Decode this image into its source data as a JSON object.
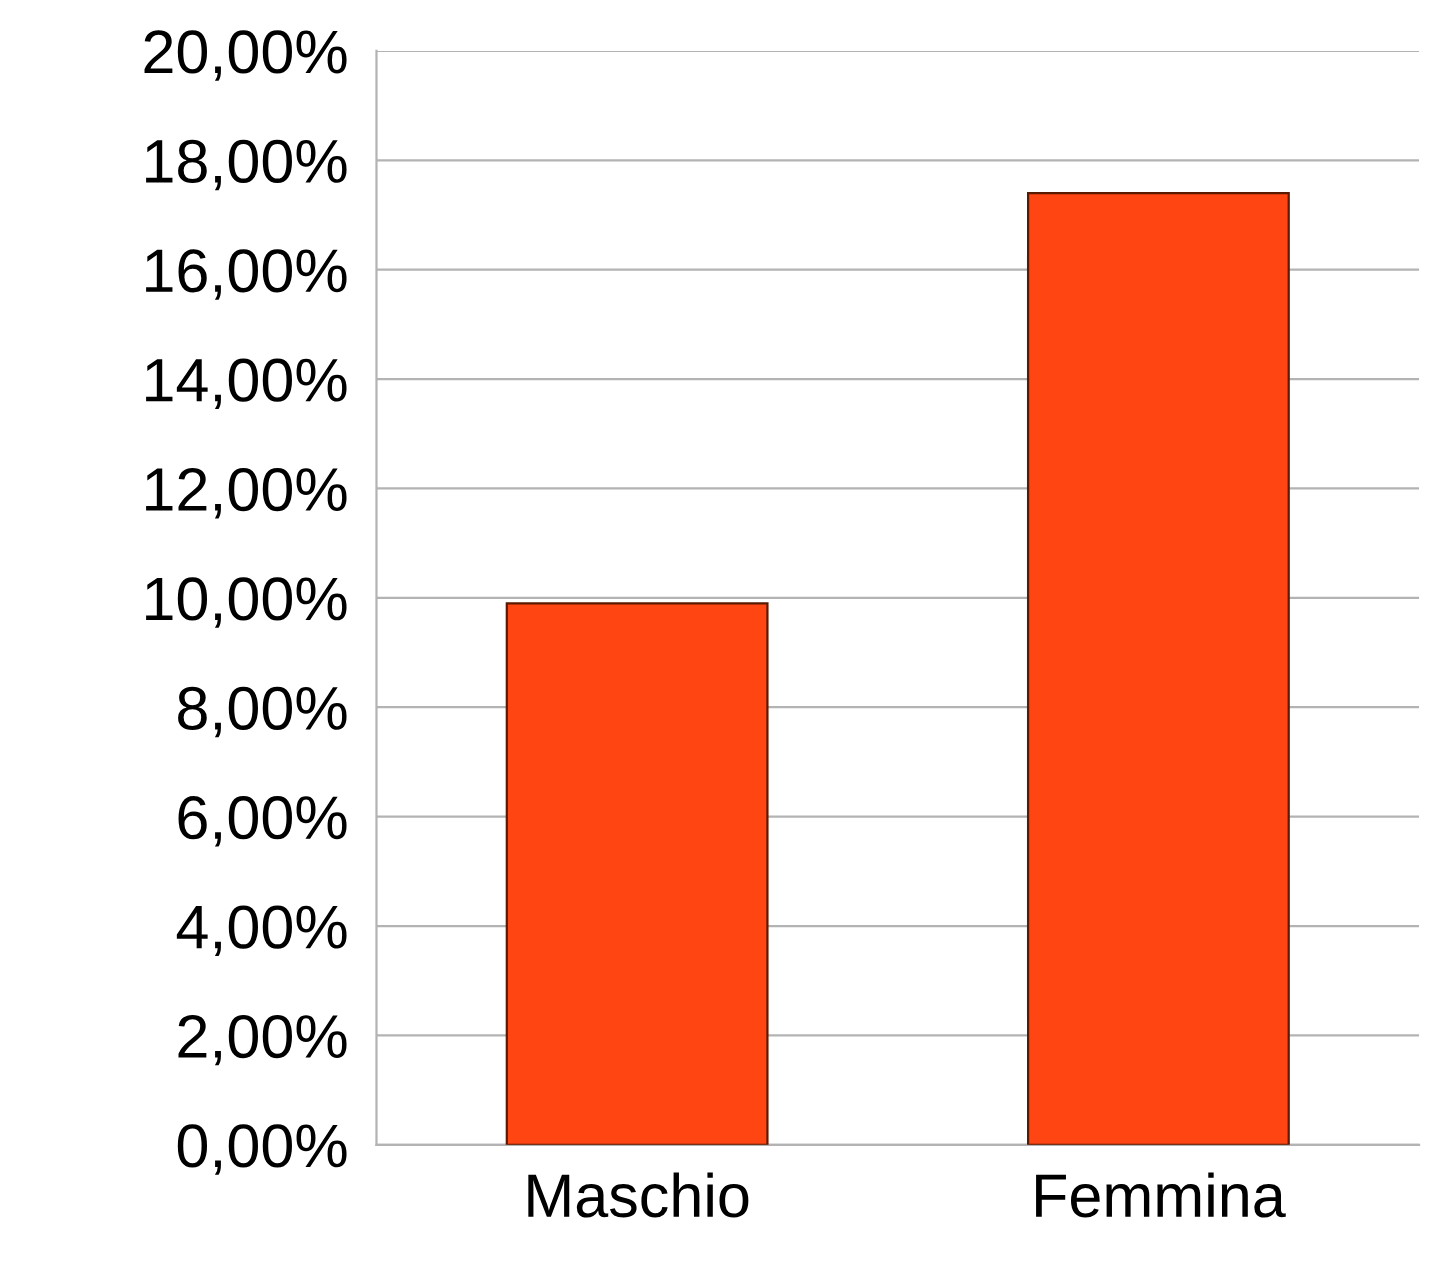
{
  "chart_data": {
    "type": "bar",
    "categories": [
      "Maschio",
      "Femmina"
    ],
    "values": [
      9.9,
      17.4
    ],
    "color": "#ff4512",
    "ylim": [
      0,
      20
    ],
    "yticks": [
      {
        "value": 0,
        "label": "0,00%"
      },
      {
        "value": 2,
        "label": "2,00%"
      },
      {
        "value": 4,
        "label": "4,00%"
      },
      {
        "value": 6,
        "label": "6,00%"
      },
      {
        "value": 8,
        "label": "8,00%"
      },
      {
        "value": 10,
        "label": "10,00%"
      },
      {
        "value": 12,
        "label": "12,00%"
      },
      {
        "value": 14,
        "label": "14,00%"
      },
      {
        "value": 16,
        "label": "16,00%"
      },
      {
        "value": 18,
        "label": "18,00%"
      },
      {
        "value": 20,
        "label": "20,00%"
      }
    ],
    "grid": "y"
  }
}
